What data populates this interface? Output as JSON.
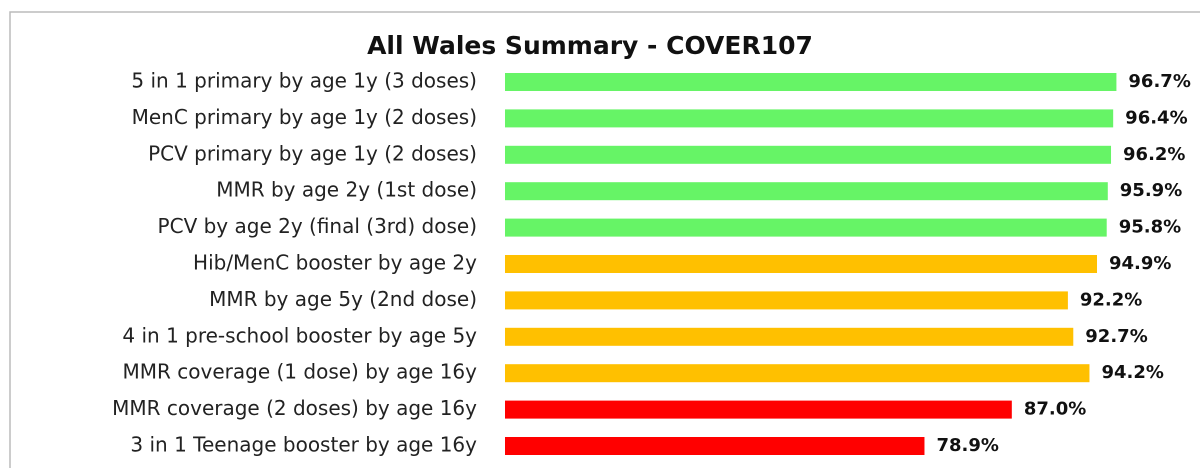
{
  "chart_data": {
    "type": "bar",
    "orientation": "horizontal",
    "title": "All Wales Summary - COVER107",
    "categories": [
      "5 in 1 primary by age 1y (3 doses)",
      "MenC primary by age 1y (2 doses)",
      "PCV primary by age 1y (2 doses)",
      "MMR by age 2y (1st dose)",
      "PCV by age 2y (final (3rd) dose)",
      "Hib/MenC booster by age 2y",
      "MMR by age 5y (2nd dose)",
      "4 in 1 pre-school booster by age 5y",
      "MMR coverage (1 dose) by age 16y",
      "MMR coverage (2 doses) by age 16y",
      "3 in 1 Teenage booster by age 16y"
    ],
    "values": [
      96.7,
      96.4,
      96.2,
      95.9,
      95.8,
      94.9,
      92.2,
      92.7,
      94.2,
      87.0,
      78.9
    ],
    "value_labels": [
      "96.7%",
      "96.4%",
      "96.2%",
      "95.9%",
      "95.8%",
      "94.9%",
      "92.2%",
      "92.7%",
      "94.2%",
      "87.0%",
      "78.9%"
    ],
    "colors": [
      "#66f466",
      "#66f466",
      "#66f466",
      "#66f466",
      "#66f466",
      "#ffc000",
      "#ffc000",
      "#ffc000",
      "#ffc000",
      "#ff0000",
      "#ff0000"
    ],
    "xlim": [
      40,
      100
    ]
  }
}
